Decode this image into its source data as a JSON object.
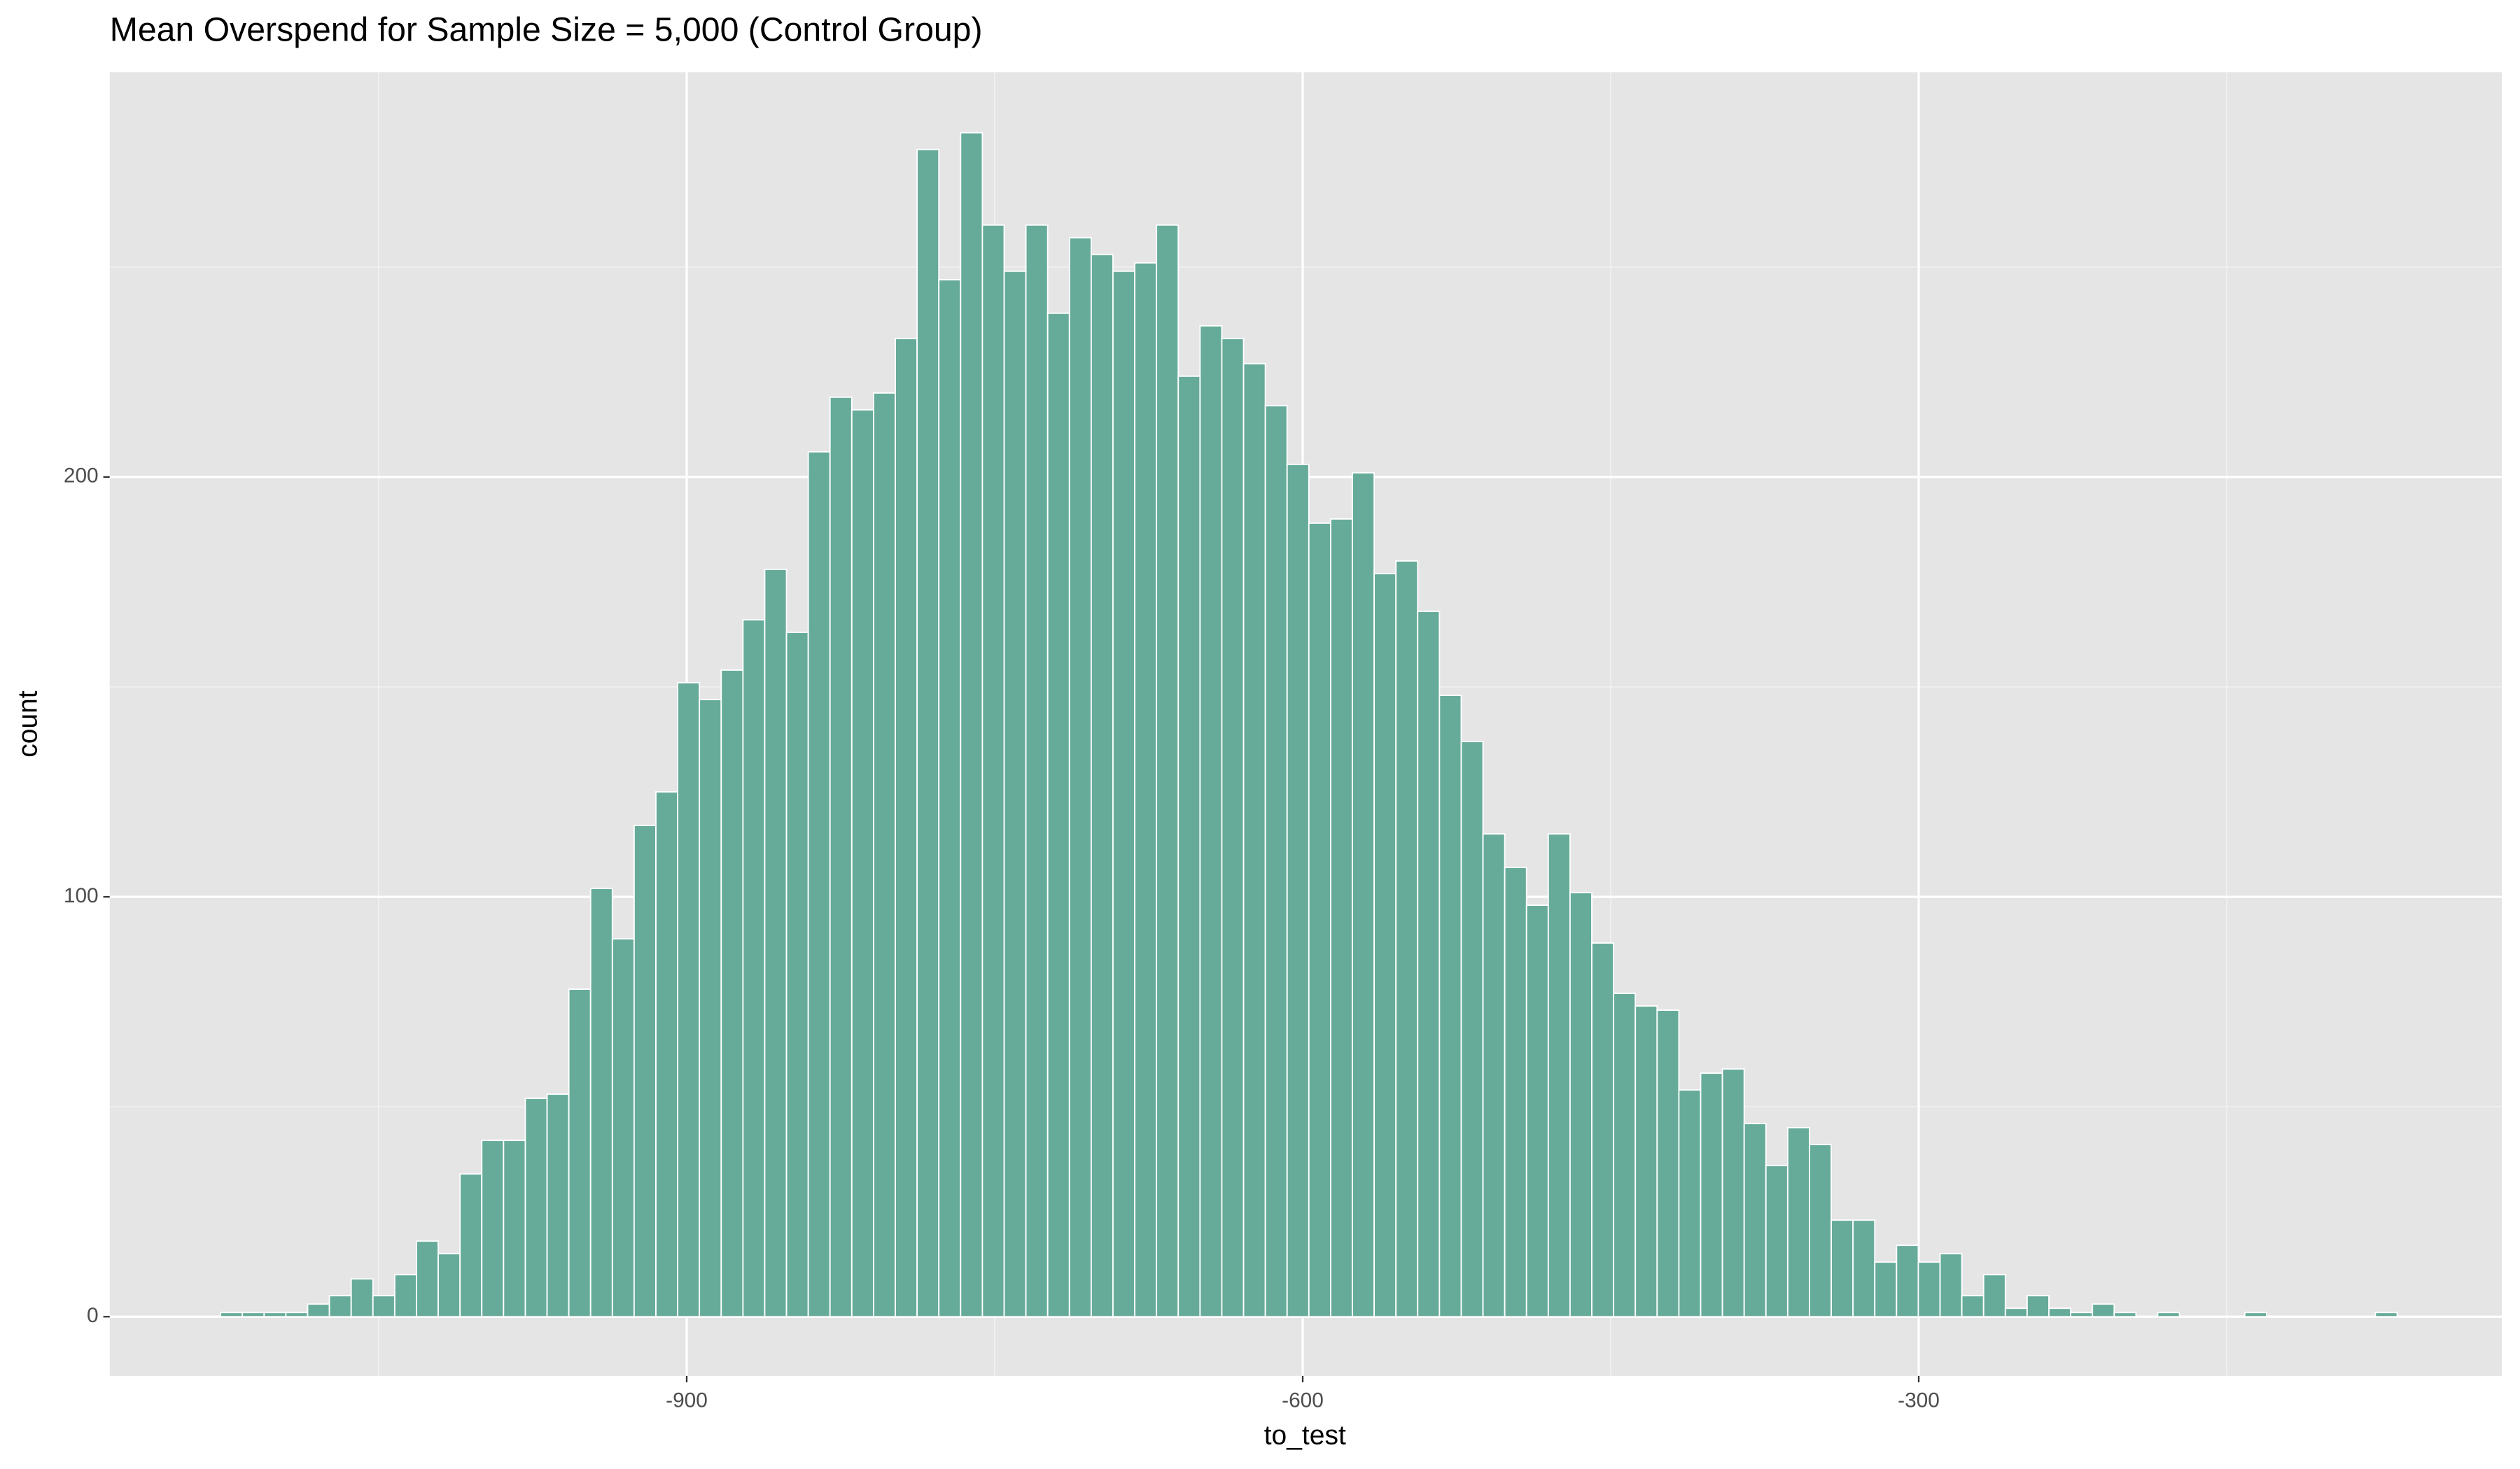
{
  "chart_data": {
    "type": "histogram",
    "title": "Mean Overspend for Sample Size = 5,000 (Control Group)",
    "x_label": "to_test",
    "y_label": "count",
    "color": "#66ab99",
    "grid": true,
    "xlim": [
      -1181,
      -16
    ],
    "ylim": [
      -14.1,
      296.4
    ],
    "xticks": [
      -900,
      -600,
      -300
    ],
    "yticks": [
      0,
      100,
      200
    ],
    "xminor": [
      -1050,
      -750,
      -450,
      -150
    ],
    "yminor": [
      50,
      150,
      250
    ],
    "bins": [
      -1127,
      -1116.4,
      -1105.8,
      -1095.2,
      -1084.6,
      -1074,
      -1063.4,
      -1052.8,
      -1042.2,
      -1031.6,
      -1021,
      -1010.4,
      -999.8,
      -989.2,
      -978.6,
      -968,
      -957.4,
      -946.8,
      -936.2,
      -925.6,
      -915,
      -904.4,
      -893.8,
      -883.2,
      -872.6,
      -862,
      -851.4,
      -840.8,
      -830.2,
      -819.6,
      -809,
      -798.4,
      -787.8,
      -777.2,
      -766.6,
      -756,
      -745.4,
      -734.8,
      -724.2,
      -713.6,
      -703,
      -692.4,
      -681.8,
      -671.2,
      -660.6,
      -650,
      -639.4,
      -628.8,
      -618.2,
      -607.6,
      -597,
      -586.4,
      -575.8,
      -565.2,
      -554.6,
      -544,
      -533.4,
      -522.8,
      -512.2,
      -501.6,
      -491,
      -480.4,
      -469.8,
      -459.2,
      -448.6,
      -438,
      -427.4,
      -416.8,
      -406.2,
      -395.6,
      -385,
      -374.4,
      -363.8,
      -353.2,
      -342.6,
      -332,
      -321.4,
      -310.8,
      -300.2,
      -289.6,
      -279,
      -268.4,
      -257.8,
      -247.2,
      -236.6,
      -226,
      -215.4,
      -204.8,
      -194.2,
      -183.6,
      -173,
      -162.4,
      -151.8,
      -141.2,
      -130.6,
      -120,
      -109.4,
      -98.8,
      -88.2,
      -77.6,
      -67
    ],
    "values": [
      1,
      1,
      1,
      1,
      3,
      5,
      9,
      5,
      10,
      18,
      15,
      34,
      42,
      42,
      52,
      53,
      78,
      102,
      90,
      117,
      125,
      151,
      147,
      154,
      166,
      178,
      163,
      206,
      219,
      216,
      220,
      233,
      278,
      247,
      282,
      260,
      249,
      260,
      239,
      257,
      253,
      249,
      251,
      260,
      224,
      236,
      233,
      227,
      217,
      203,
      189,
      190,
      201,
      177,
      180,
      168,
      148,
      137,
      115,
      107,
      98,
      115,
      101,
      89,
      77,
      74,
      73,
      54,
      58,
      59,
      46,
      36,
      45,
      41,
      23,
      23,
      13,
      17,
      13,
      15,
      5,
      10,
      2,
      5,
      2,
      1,
      3,
      1,
      0,
      1,
      0,
      0,
      0,
      1,
      0,
      0,
      0,
      0,
      0,
      1
    ]
  }
}
